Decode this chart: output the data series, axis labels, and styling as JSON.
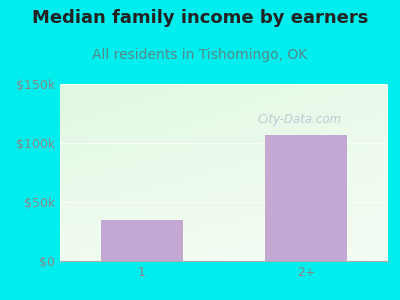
{
  "title": "Median family income by earners",
  "subtitle": "All residents in Tishomingo, OK",
  "categories": [
    "1",
    "2+"
  ],
  "values": [
    35000,
    107000
  ],
  "bar_color": "#C4A8D4",
  "outer_bg": "#00EEEE",
  "title_color": "#222222",
  "subtitle_color": "#558888",
  "tick_color": "#888888",
  "ylim": [
    0,
    150000
  ],
  "yticks": [
    0,
    50000,
    100000,
    150000
  ],
  "ytick_labels": [
    "$0",
    "$50k",
    "$100k",
    "$150k"
  ],
  "watermark": "City-Data.com",
  "title_fontsize": 13,
  "subtitle_fontsize": 10,
  "tick_fontsize": 9
}
